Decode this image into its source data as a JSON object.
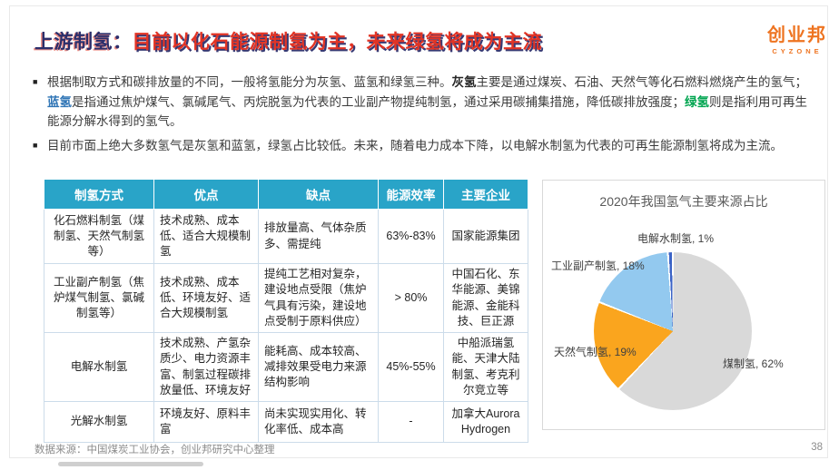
{
  "title": {
    "prefix": "上游制氢：",
    "main": "目前以化石能源制氢为主，未来绿氢将成为主流"
  },
  "logo": {
    "text": "创业邦",
    "subtext": "CYZONE"
  },
  "colors": {
    "title_navy": "#2b2e6b",
    "title_red": "#e23425",
    "header_teal": "#29a4c8",
    "term_blue": "#2e74b5",
    "term_green": "#00a550",
    "logo_orange": "#ee7421"
  },
  "bullets": {
    "b1": {
      "s1": "根据制取方式和碳排放量的不同，一般将氢能分为灰氢、蓝氢和绿氢三种。",
      "gray_term": "灰氢",
      "s2": "主要是通过煤炭、石油、天然气等化石燃料燃烧产生的氢气；",
      "blue_term": "蓝氢",
      "s3": "是指通过焦炉煤气、氯碱尾气、丙烷脱氢为代表的工业副产物提纯制氢，通过采用碳捕集措施，降低碳排放强度；",
      "green_term": "绿氢",
      "s4": "则是指利用可再生能源分解水得到的氢气。"
    },
    "b2": "目前市面上绝大多数氢气是灰氢和蓝氢，绿氢占比较低。未来，随着电力成本下降，以电解水制氢为代表的可再生能源制氢将成为主流。"
  },
  "table": {
    "header_bg": "#29a4c8",
    "headers": [
      "制氢方式",
      "优点",
      "缺点",
      "能源效率",
      "主要企业"
    ],
    "rows": [
      [
        "化石燃料制氢（煤制氢、天然气制氢等）",
        "技术成熟、成本低、适合大规模制氢",
        "排放量高、气体杂质多、需提纯",
        "63%-83%",
        "国家能源集团"
      ],
      [
        "工业副产制氢（焦炉煤气制氢、氯碱制氢等）",
        "技术成熟、成本低、环境友好、适合大规模制氢",
        "提纯工艺相对复杂，建设地点受限（焦炉气具有污染，建设地点受制于原料供应）",
        "> 80%",
        "中国石化、东华能源、美锦能源、金能科技、巨正源"
      ],
      [
        "电解水制氢",
        "技术成熟、产氢杂质少、电力资源丰富、制氢过程碳排放量低、环境友好",
        "能耗高、成本较高、减排效果受电力来源结构影响",
        "45%-55%",
        "中船派瑞氢能、天津大陆制氢、考克利尔竞立等"
      ],
      [
        "光解水制氢",
        "环境友好、原料丰富",
        "尚未实现实用化、转化率低、成本高",
        "-",
        "加拿大Aurora Hydrogen"
      ]
    ]
  },
  "chart_data": {
    "type": "pie",
    "title": "2020年我国氢气主要来源占比",
    "start_angle_deg": 0,
    "direction": "clockwise",
    "legend_position": "data-labels",
    "slices": [
      {
        "name": "煤制氢",
        "value": 62,
        "color": "#d9d9d9",
        "label": "煤制氢, 62%"
      },
      {
        "name": "天然气制氢",
        "value": 19,
        "color": "#faa51e",
        "label": "天然气制氢, 19%"
      },
      {
        "name": "工业副产制氢",
        "value": 18,
        "color": "#93c9ef",
        "label": "工业副产制氢, 18%"
      },
      {
        "name": "电解水制氢",
        "value": 1,
        "color": "#3b63c6",
        "label": "电解水制氢, 1%"
      }
    ]
  },
  "footer": {
    "source": "数据来源：中国煤炭工业协会，创业邦研究中心整理",
    "page": "38"
  }
}
